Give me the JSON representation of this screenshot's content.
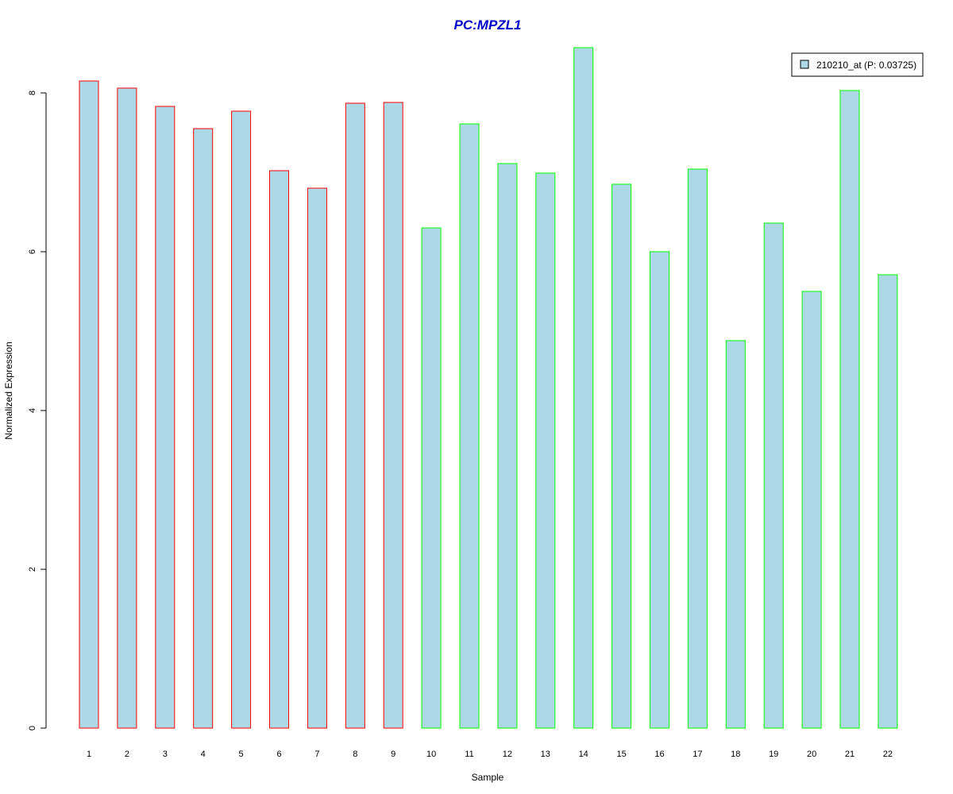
{
  "chart_data": {
    "type": "bar",
    "title": "PC:MPZL1",
    "xlabel": "Sample",
    "ylabel": "Normalized Expression",
    "categories": [
      "1",
      "2",
      "3",
      "4",
      "5",
      "6",
      "7",
      "8",
      "9",
      "10",
      "11",
      "12",
      "13",
      "14",
      "15",
      "16",
      "17",
      "18",
      "19",
      "20",
      "21",
      "22"
    ],
    "series": [
      {
        "name": "210210_at (P: 0.03725)",
        "values": [
          8.15,
          8.06,
          7.83,
          7.55,
          7.77,
          7.02,
          6.8,
          7.87,
          7.88,
          6.3,
          7.61,
          7.11,
          6.99,
          8.57,
          6.85,
          6.0,
          7.04,
          4.88,
          6.36,
          5.5,
          8.03,
          5.71
        ]
      }
    ],
    "bar_fill": "#ADD8E6",
    "bar_border_colors": [
      "#FF0000",
      "#FF0000",
      "#FF0000",
      "#FF0000",
      "#FF0000",
      "#FF0000",
      "#FF0000",
      "#FF0000",
      "#FF0000",
      "#00FF00",
      "#00FF00",
      "#00FF00",
      "#00FF00",
      "#00FF00",
      "#00FF00",
      "#00FF00",
      "#00FF00",
      "#00FF00",
      "#00FF00",
      "#00FF00",
      "#00FF00",
      "#00FF00"
    ],
    "ylim": [
      0,
      8.57
    ],
    "yticks": [
      "0",
      "2",
      "4",
      "6",
      "8"
    ],
    "title_color": "#0000CC",
    "legend": {
      "position": "top-right",
      "label": "210210_at (P: 0.03725)"
    },
    "grid": false
  }
}
